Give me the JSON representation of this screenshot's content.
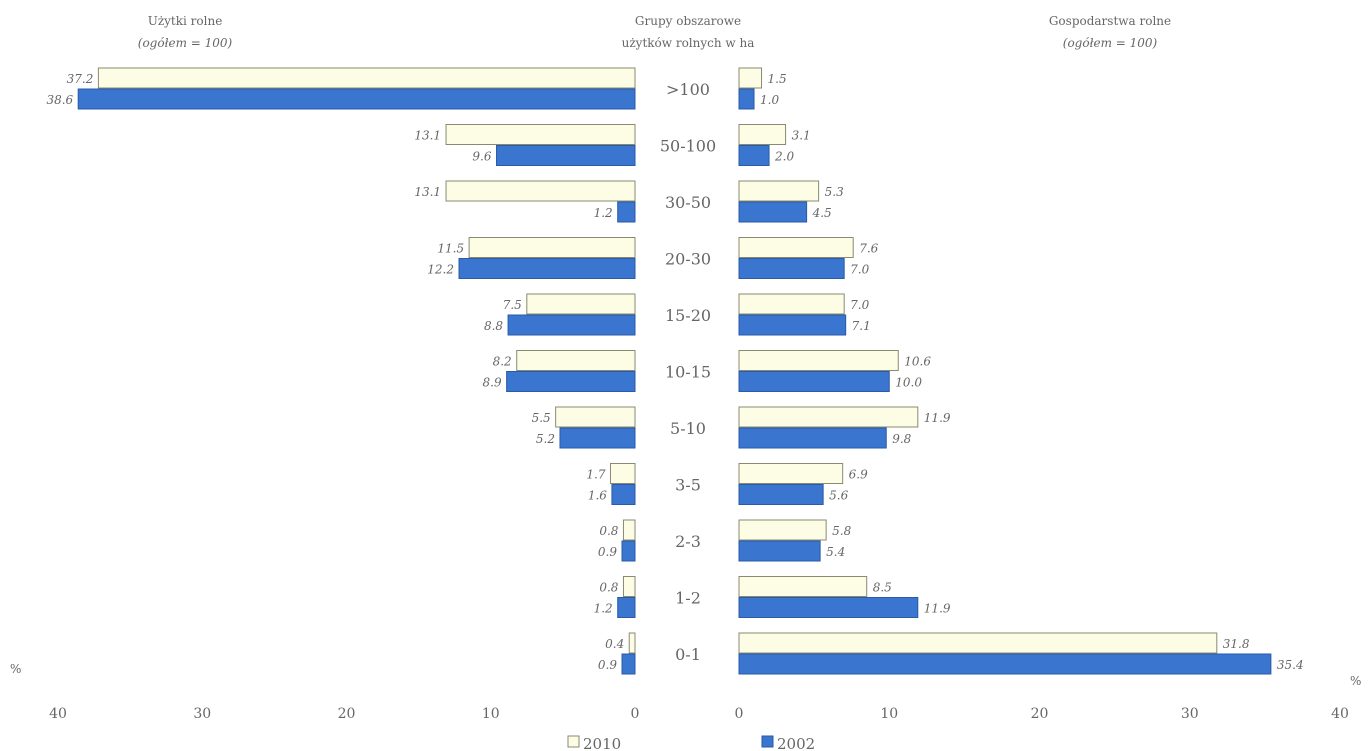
{
  "chart_data": {
    "type": "bar",
    "orientation": "horizontal-butterfly",
    "center_header": [
      "Grupy obszarowe",
      "użytków rolnych w ha"
    ],
    "categories": [
      ">100",
      "50-100",
      "30-50",
      "20-30",
      "15-20",
      "10-15",
      "5-10",
      "3-5",
      "2-3",
      "1-2",
      "0-1"
    ],
    "panels": [
      {
        "side": "left",
        "title": "Użytki rolne",
        "subtitle": "(ogółem = 100)",
        "unit_label": "%",
        "xlim": [
          0,
          40
        ],
        "ticks": [
          40,
          30,
          20,
          10,
          0
        ],
        "series": [
          {
            "name": "2010",
            "values": [
              37.2,
              13.1,
              13.1,
              11.5,
              7.5,
              8.2,
              5.5,
              1.7,
              0.8,
              0.8,
              0.4
            ],
            "labels": [
              "37.2",
              "13.1",
              "13.1",
              "11.5",
              "7.5",
              "8.2",
              "5.5",
              "1.7",
              "0.8",
              "0.8",
              "0.4"
            ]
          },
          {
            "name": "2002",
            "values": [
              38.6,
              9.6,
              1.2,
              12.2,
              8.8,
              8.9,
              5.2,
              1.6,
              0.9,
              1.2,
              0.9
            ],
            "labels": [
              "38.6",
              "9.6",
              "1.2",
              "12.2",
              "8.8",
              "8.9",
              "5.2",
              "1.6",
              "0.9",
              "1.2",
              "0.9"
            ]
          }
        ]
      },
      {
        "side": "right",
        "title": "Gospodarstwa rolne",
        "subtitle": "(ogółem = 100)",
        "unit_label": "%",
        "xlim": [
          0,
          40
        ],
        "ticks": [
          0,
          10,
          20,
          30,
          40
        ],
        "series": [
          {
            "name": "2010",
            "values": [
              1.5,
              3.1,
              5.3,
              7.6,
              7.0,
              10.6,
              11.9,
              6.9,
              5.8,
              8.5,
              31.8
            ],
            "labels": [
              "1.5",
              "3.1",
              "5.3",
              "7.6",
              "7.0",
              "10.6",
              "11.9",
              "6.9",
              "5.8",
              "8.5",
              "31.8"
            ]
          },
          {
            "name": "2002",
            "values": [
              1.0,
              2.0,
              4.5,
              7.0,
              7.1,
              10.0,
              9.8,
              5.6,
              5.4,
              11.9,
              35.4
            ],
            "labels": [
              "1.0",
              "2.0",
              "4.5",
              "7.0",
              "7.1",
              "10.0",
              "9.8",
              "5.6",
              "5.4",
              "11.9",
              "35.4"
            ]
          }
        ]
      }
    ],
    "legend": {
      "placement": "bottom-center",
      "items": [
        {
          "label": "2010",
          "color": "#fdfde6",
          "border": "#8a8a70"
        },
        {
          "label": "2002",
          "color": "#3a75cf",
          "border": "#2a5aa8"
        }
      ]
    },
    "colors": {
      "2010": "#fdfde6",
      "2002": "#3a75cf"
    }
  }
}
